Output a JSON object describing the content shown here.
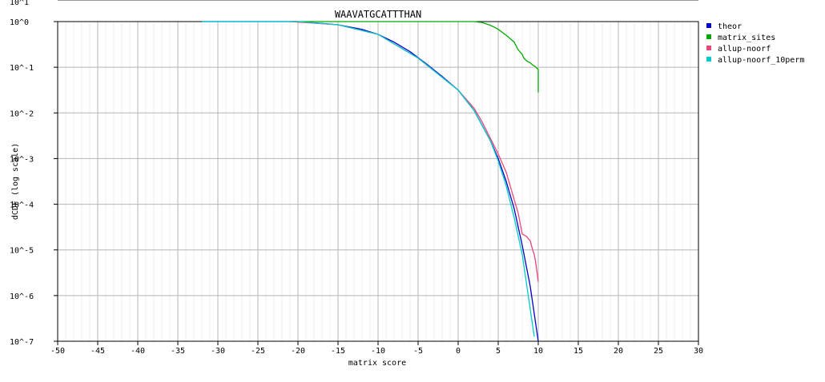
{
  "chart_data": {
    "type": "line",
    "title": "WAAVATGCATTTHAN",
    "xlabel": "matrix score",
    "ylabel": "dCDF (log scale)",
    "xlim": [
      -50,
      30
    ],
    "ylim_log10": [
      -7,
      0
    ],
    "y_scale": "log",
    "x_ticks": [
      -50,
      -45,
      -40,
      -35,
      -30,
      -25,
      -20,
      -15,
      -10,
      -5,
      0,
      5,
      10,
      15,
      20,
      25,
      30
    ],
    "x_tick_labels": [
      "-50",
      "-45",
      "-40",
      "-35",
      "-30",
      "-25",
      "-20",
      "-15",
      "-10",
      "-5",
      "0",
      "5",
      "10",
      "15",
      "20",
      "25",
      "30"
    ],
    "y_ticks_log10": [
      -7,
      -6,
      -5,
      -4,
      -3,
      -2,
      -1,
      0
    ],
    "y_tick_labels": [
      "10^-7",
      "10^-6",
      "10^-5",
      "10^-4",
      "10^-3",
      "10^-2",
      "10^-1",
      "10^0"
    ],
    "top_cut_label": "10^1",
    "grid": true,
    "legend_position": "right",
    "series": [
      {
        "name": "theor",
        "color": "#0000cc",
        "x": [
          -32,
          -25,
          -20,
          -17,
          -15,
          -12,
          -10,
          -8,
          -6,
          -4,
          -2,
          0,
          2,
          4,
          5,
          6,
          7,
          8,
          9,
          9.5,
          10
        ],
        "log10_y": [
          0,
          0,
          0,
          -0.04,
          -0.07,
          -0.17,
          -0.28,
          -0.45,
          -0.66,
          -0.92,
          -1.2,
          -1.5,
          -1.95,
          -2.6,
          -3.0,
          -3.5,
          -4.1,
          -4.9,
          -5.8,
          -6.4,
          -7.0
        ]
      },
      {
        "name": "matrix_sites",
        "color": "#00aa00",
        "x": [
          -21,
          -10,
          0,
          1,
          2,
          2.5,
          3,
          3.5,
          4,
          4.5,
          5,
          6,
          7,
          7.5,
          8,
          8.2,
          8.5,
          8.7,
          9,
          9.3,
          9.5,
          9.7,
          10,
          10
        ],
        "log10_y": [
          0,
          0,
          0,
          0,
          0,
          -0.01,
          -0.02,
          -0.05,
          -0.08,
          -0.12,
          -0.17,
          -0.3,
          -0.45,
          -0.62,
          -0.72,
          -0.8,
          -0.85,
          -0.88,
          -0.9,
          -0.95,
          -0.97,
          -1.0,
          -1.05,
          -1.55
        ]
      },
      {
        "name": "allup-noorf",
        "color": "#ee4477",
        "x": [
          -21,
          -15,
          -10,
          -5,
          0,
          2,
          3,
          4,
          5,
          6,
          7,
          7.5,
          8,
          8.5,
          9,
          9.3,
          9.5,
          9.7,
          10
        ],
        "log10_y": [
          0,
          -0.07,
          -0.28,
          -0.8,
          -1.5,
          -1.9,
          -2.2,
          -2.55,
          -2.9,
          -3.3,
          -3.9,
          -4.2,
          -4.65,
          -4.7,
          -4.8,
          -5.0,
          -5.1,
          -5.3,
          -5.7
        ]
      },
      {
        "name": "allup-noorf_10perm",
        "color": "#00cccc",
        "x": [
          -32,
          -25,
          -20,
          -15,
          -10,
          -5,
          0,
          2,
          4,
          5,
          6,
          7,
          8,
          8.5,
          9,
          9.5
        ],
        "log10_y": [
          0,
          0,
          0,
          -0.07,
          -0.28,
          -0.8,
          -1.5,
          -1.95,
          -2.6,
          -3.05,
          -3.6,
          -4.3,
          -5.1,
          -5.7,
          -6.3,
          -6.9
        ]
      }
    ]
  }
}
